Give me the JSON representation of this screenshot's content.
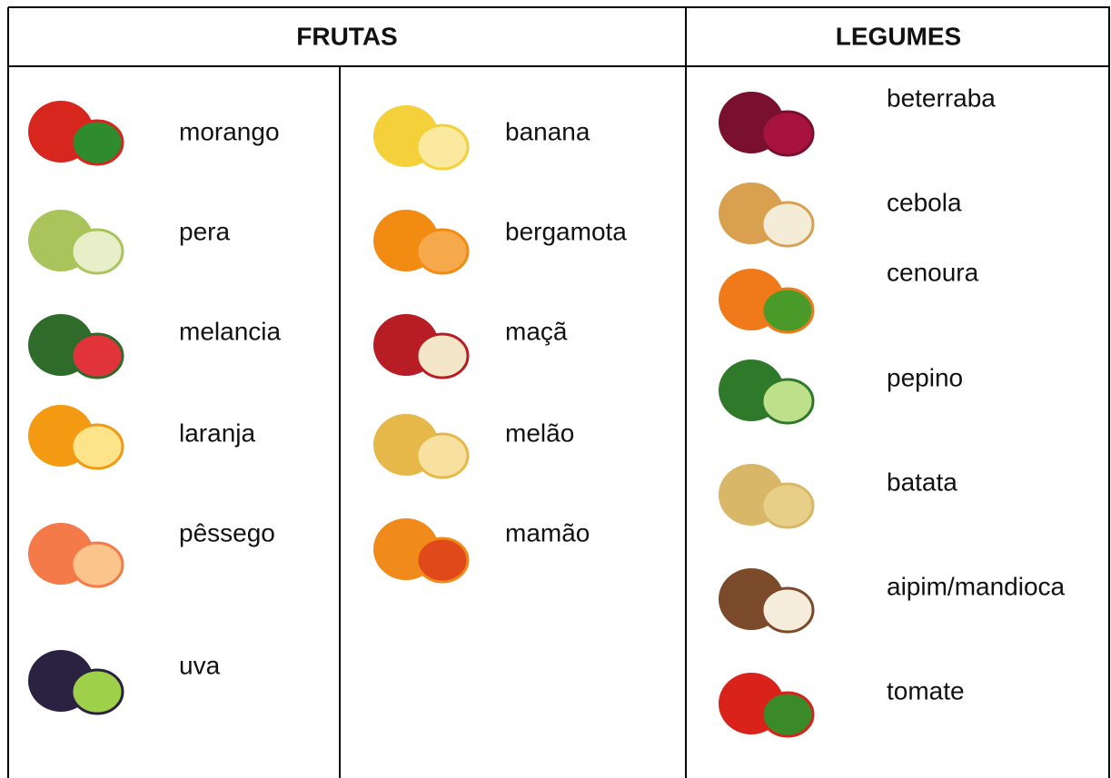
{
  "table": {
    "headers": [
      "FRUTAS",
      "LEGUMES"
    ],
    "fruits_left": [
      "morango",
      "pera",
      "melancia",
      "laranja",
      "pêssego",
      "uva"
    ],
    "fruits_right": [
      "banana",
      "bergamota",
      "maçã",
      "melão",
      "mamão"
    ],
    "vegetables": [
      "beterraba",
      "cebola",
      "cenoura",
      "pepino",
      "batata",
      "aipim/mandioca",
      "tomate"
    ]
  }
}
